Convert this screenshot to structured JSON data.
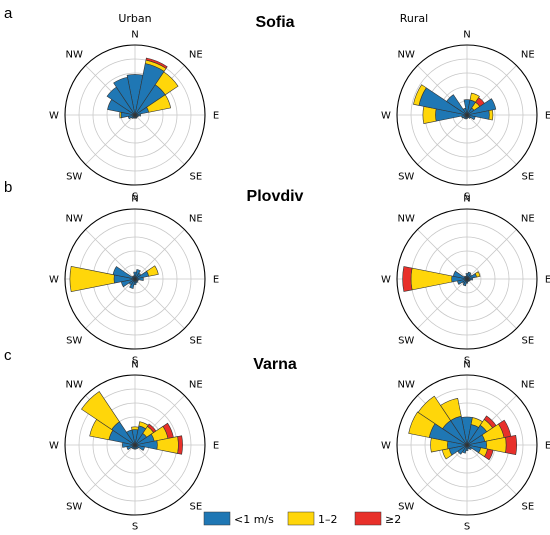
{
  "figure": {
    "column_titles": [
      "Urban",
      "Rural"
    ],
    "rows": [
      {
        "letter": "a",
        "site": "Sofia"
      },
      {
        "letter": "b",
        "site": "Plovdiv"
      },
      {
        "letter": "c",
        "site": "Varna"
      }
    ],
    "directions": [
      "N",
      "NE",
      "E",
      "SE",
      "S",
      "SW",
      "W",
      "NW"
    ],
    "legend": [
      {
        "label": "<1 m/s",
        "color": "#1f77b4"
      },
      {
        "label": "1–2",
        "color": "#ffd60a"
      },
      {
        "label": "≥2",
        "color": "#e8302a"
      }
    ]
  },
  "chart_data": [
    {
      "type": "windrose",
      "site": "Sofia",
      "setting": "Urban",
      "sectors": 16,
      "rlim": [
        0,
        1
      ],
      "series": [
        {
          "values": [
            0.58,
            0.75,
            0.52,
            0.2,
            0.08,
            0.05,
            0.04,
            0.05,
            0.04,
            0.05,
            0.06,
            0.1,
            0.2,
            0.4,
            0.48,
            0.55
          ]
        },
        {
          "values": [
            0.0,
            0.05,
            0.22,
            0.32,
            0.0,
            0.0,
            0.0,
            0.0,
            0.0,
            0.0,
            0.0,
            0.0,
            0.02,
            0.0,
            0.0,
            0.0
          ]
        },
        {
          "values": [
            0.0,
            0.03,
            0.0,
            0.0,
            0.0,
            0.0,
            0.0,
            0.0,
            0.0,
            0.0,
            0.0,
            0.0,
            0.0,
            0.0,
            0.0,
            0.0
          ]
        }
      ]
    },
    {
      "type": "windrose",
      "site": "Sofia",
      "setting": "Rural",
      "sectors": 16,
      "rlim": [
        0,
        1
      ],
      "series": [
        {
          "values": [
            0.22,
            0.22,
            0.12,
            0.42,
            0.32,
            0.12,
            0.06,
            0.04,
            0.05,
            0.06,
            0.06,
            0.08,
            0.45,
            0.7,
            0.35,
            0.1
          ]
        },
        {
          "values": [
            0.0,
            0.1,
            0.1,
            0.0,
            0.05,
            0.0,
            0.0,
            0.0,
            0.0,
            0.0,
            0.0,
            0.0,
            0.18,
            0.08,
            0.0,
            0.0
          ]
        },
        {
          "values": [
            0.0,
            0.0,
            0.08,
            0.0,
            0.0,
            0.0,
            0.0,
            0.0,
            0.0,
            0.0,
            0.0,
            0.0,
            0.0,
            0.0,
            0.0,
            0.0
          ]
        }
      ]
    },
    {
      "type": "windrose",
      "site": "Plovdiv",
      "setting": "Urban",
      "sectors": 16,
      "rlim": [
        0,
        1
      ],
      "series": [
        {
          "values": [
            0.1,
            0.14,
            0.1,
            0.2,
            0.12,
            0.05,
            0.05,
            0.06,
            0.08,
            0.14,
            0.1,
            0.2,
            0.3,
            0.32,
            0.05,
            0.05
          ]
        },
        {
          "values": [
            0.0,
            0.0,
            0.0,
            0.14,
            0.0,
            0.0,
            0.0,
            0.0,
            0.0,
            0.0,
            0.0,
            0.0,
            0.63,
            0.0,
            0.0,
            0.0
          ]
        },
        {
          "values": [
            0.0,
            0.0,
            0.0,
            0.0,
            0.0,
            0.0,
            0.0,
            0.0,
            0.0,
            0.0,
            0.0,
            0.0,
            0.0,
            0.0,
            0.0,
            0.0
          ]
        }
      ]
    },
    {
      "type": "windrose",
      "site": "Plovdiv",
      "setting": "Rural",
      "sectors": 16,
      "rlim": [
        0,
        1
      ],
      "series": [
        {
          "values": [
            0.08,
            0.1,
            0.08,
            0.14,
            0.08,
            0.05,
            0.04,
            0.04,
            0.06,
            0.1,
            0.08,
            0.14,
            0.22,
            0.2,
            0.05,
            0.04
          ]
        },
        {
          "values": [
            0.0,
            0.0,
            0.0,
            0.05,
            0.0,
            0.0,
            0.0,
            0.0,
            0.0,
            0.0,
            0.0,
            0.0,
            0.58,
            0.0,
            0.0,
            0.0
          ]
        },
        {
          "values": [
            0.0,
            0.0,
            0.0,
            0.0,
            0.0,
            0.0,
            0.0,
            0.0,
            0.0,
            0.0,
            0.0,
            0.0,
            0.12,
            0.0,
            0.0,
            0.0
          ]
        }
      ]
    },
    {
      "type": "windrose",
      "site": "Varna",
      "setting": "Urban",
      "sectors": 16,
      "rlim": [
        0,
        1
      ],
      "series": [
        {
          "values": [
            0.22,
            0.28,
            0.2,
            0.28,
            0.32,
            0.14,
            0.06,
            0.06,
            0.06,
            0.06,
            0.06,
            0.12,
            0.18,
            0.38,
            0.4,
            0.22
          ]
        },
        {
          "values": [
            0.04,
            0.06,
            0.12,
            0.2,
            0.3,
            0.0,
            0.0,
            0.0,
            0.0,
            0.0,
            0.0,
            0.0,
            0.0,
            0.28,
            0.52,
            0.0
          ]
        },
        {
          "values": [
            0.0,
            0.0,
            0.04,
            0.08,
            0.06,
            0.0,
            0.0,
            0.0,
            0.0,
            0.0,
            0.0,
            0.0,
            0.0,
            0.0,
            0.0,
            0.0
          ]
        }
      ]
    },
    {
      "type": "windrose",
      "site": "Varna",
      "setting": "Rural",
      "sectors": 16,
      "rlim": [
        0,
        1
      ],
      "series": [
        {
          "values": [
            0.4,
            0.3,
            0.34,
            0.26,
            0.28,
            0.2,
            0.08,
            0.06,
            0.08,
            0.12,
            0.16,
            0.26,
            0.28,
            0.55,
            0.42,
            0.42
          ]
        },
        {
          "values": [
            0.0,
            0.1,
            0.1,
            0.28,
            0.28,
            0.1,
            0.0,
            0.0,
            0.0,
            0.0,
            0.0,
            0.1,
            0.24,
            0.3,
            0.42,
            0.26
          ]
        },
        {
          "values": [
            0.0,
            0.0,
            0.06,
            0.1,
            0.15,
            0.08,
            0.0,
            0.0,
            0.0,
            0.0,
            0.0,
            0.0,
            0.0,
            0.0,
            0.0,
            0.0
          ]
        }
      ]
    }
  ]
}
